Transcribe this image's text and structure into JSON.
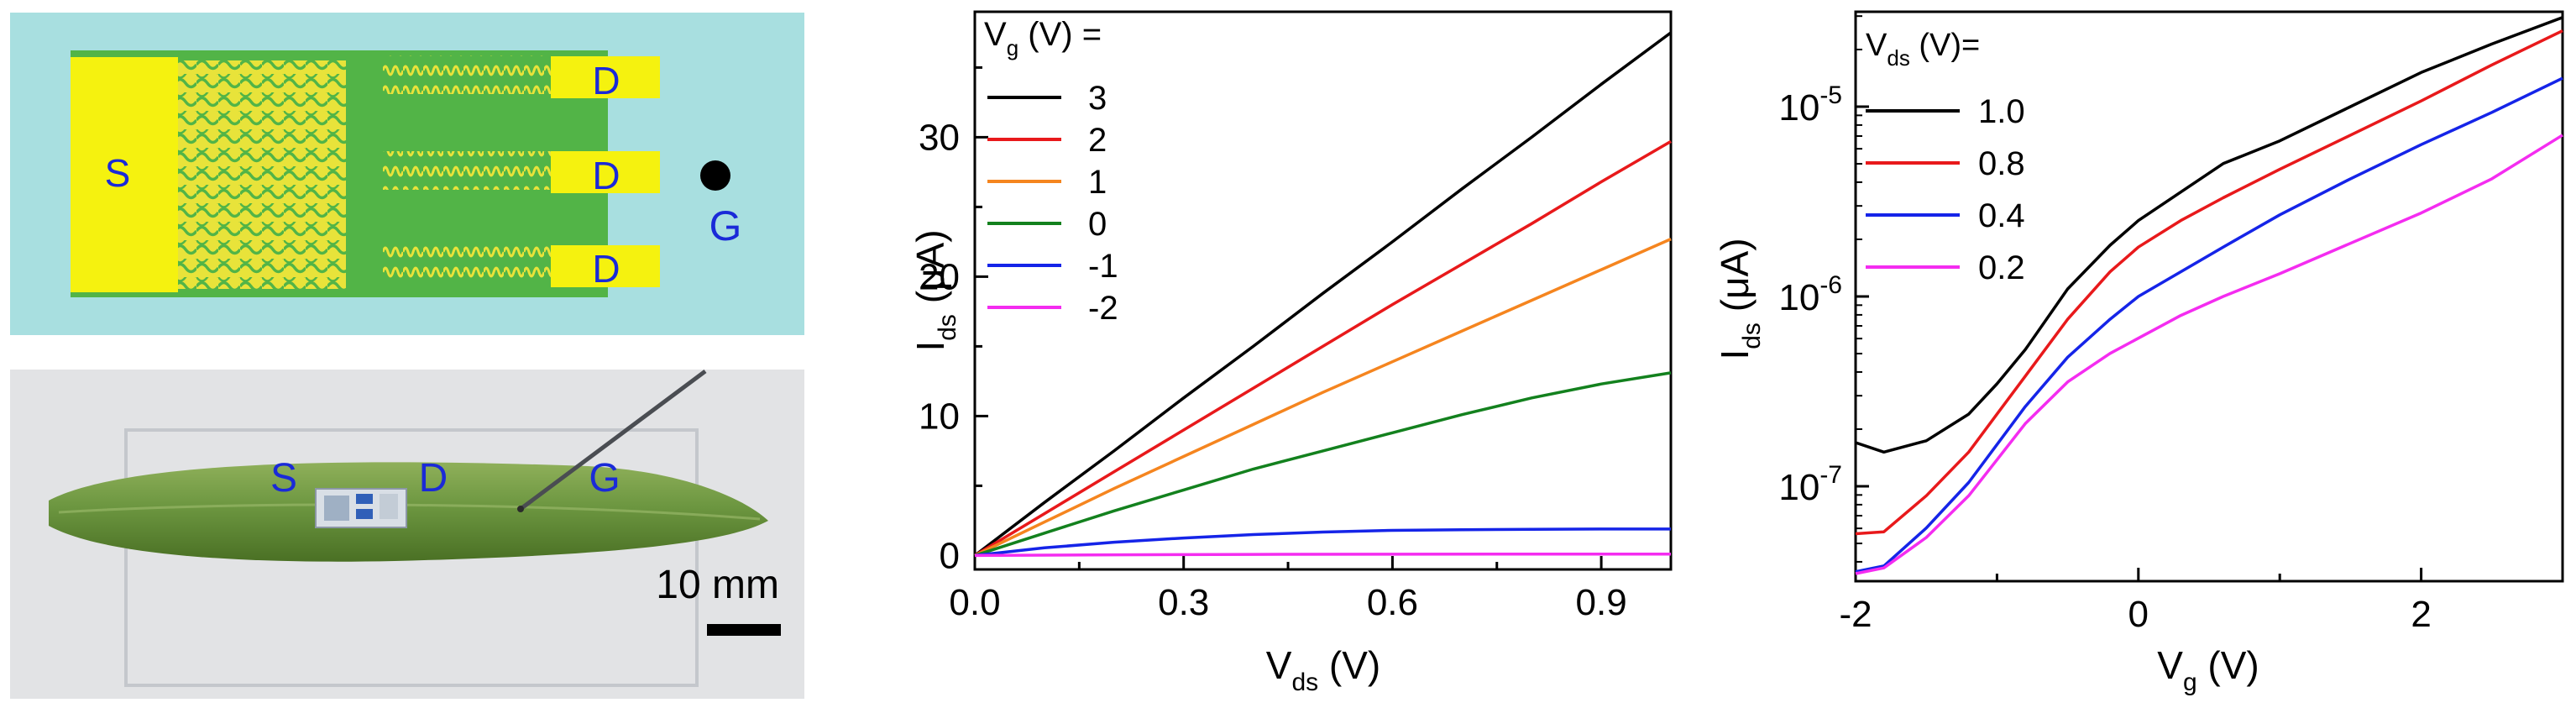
{
  "schematic": {
    "source_label": "S",
    "drain_labels": [
      "D",
      "D",
      "D"
    ],
    "gate_label": "G"
  },
  "photo": {
    "labels": [
      "S",
      "D",
      "G"
    ],
    "scale_bar_label": "10 mm"
  },
  "chart_data": [
    {
      "type": "line",
      "xlabel": "V_ds (V)",
      "ylabel": "I_ds (μA)",
      "xlim": [
        0,
        1.0
      ],
      "ylim": [
        -1,
        39
      ],
      "x_ticks": [
        0.0,
        0.3,
        0.6,
        0.9
      ],
      "x_tick_labels": [
        "0.0",
        "0.3",
        "0.6",
        "0.9"
      ],
      "y_ticks": [
        0,
        10,
        20,
        30
      ],
      "y_tick_labels": [
        "0",
        "10",
        "20",
        "30"
      ],
      "legend_title": "V_g (V) =",
      "legend_position": "top-left",
      "series": [
        {
          "name": "3",
          "color": "#000000",
          "x": [
            0,
            0.1,
            0.2,
            0.3,
            0.4,
            0.5,
            0.6,
            0.7,
            0.8,
            0.9,
            1.0
          ],
          "y": [
            0,
            3.8,
            7.5,
            11.3,
            15.0,
            18.8,
            22.5,
            26.3,
            30.0,
            33.8,
            37.5
          ]
        },
        {
          "name": "2",
          "color": "#e8191b",
          "x": [
            0,
            0.1,
            0.2,
            0.3,
            0.4,
            0.5,
            0.6,
            0.7,
            0.8,
            0.9,
            1.0
          ],
          "y": [
            0,
            3.0,
            6.0,
            9.0,
            12.0,
            15.0,
            18.0,
            20.9,
            23.8,
            26.8,
            29.7
          ]
        },
        {
          "name": "1",
          "color": "#f5851f",
          "x": [
            0,
            0.1,
            0.2,
            0.3,
            0.4,
            0.5,
            0.6,
            0.7,
            0.8,
            0.9,
            1.0
          ],
          "y": [
            0,
            2.4,
            4.8,
            7.1,
            9.4,
            11.7,
            13.9,
            16.1,
            18.3,
            20.5,
            22.7
          ]
        },
        {
          "name": "0",
          "color": "#13811e",
          "x": [
            0,
            0.1,
            0.2,
            0.3,
            0.4,
            0.5,
            0.6,
            0.7,
            0.8,
            0.9,
            1.0
          ],
          "y": [
            0,
            1.6,
            3.2,
            4.7,
            6.2,
            7.5,
            8.8,
            10.1,
            11.3,
            12.3,
            13.1
          ]
        },
        {
          "name": "-1",
          "color": "#1524e8",
          "x": [
            0,
            0.1,
            0.2,
            0.3,
            0.4,
            0.5,
            0.6,
            0.7,
            0.8,
            0.9,
            1.0
          ],
          "y": [
            0,
            0.55,
            0.95,
            1.25,
            1.5,
            1.68,
            1.8,
            1.85,
            1.88,
            1.9,
            1.9
          ]
        },
        {
          "name": "-2",
          "color": "#f42cf0",
          "x": [
            0,
            0.2,
            0.4,
            0.6,
            0.8,
            1.0
          ],
          "y": [
            0,
            0.05,
            0.08,
            0.09,
            0.1,
            0.1
          ]
        }
      ]
    },
    {
      "type": "line",
      "xlabel": "V_g (V)",
      "ylabel": "I_ds (μA)",
      "yscale": "log",
      "xlim": [
        -2,
        3
      ],
      "ylim_log10": [
        -7.5,
        -4.5
      ],
      "x_ticks": [
        -2,
        0,
        2
      ],
      "x_tick_labels": [
        "-2",
        "0",
        "2"
      ],
      "y_ticks_log10": [
        -7,
        -6,
        -5
      ],
      "y_tick_labels": [
        "10-7",
        "10-6",
        "10-5"
      ],
      "legend_title": "V_ds (V)=",
      "legend_position": "top-left",
      "series": [
        {
          "name": "1.0",
          "color": "#000000",
          "x": [
            -2,
            -1.8,
            -1.5,
            -1.2,
            -1.0,
            -0.8,
            -0.5,
            -0.2,
            0,
            0.3,
            0.6,
            1.0,
            1.5,
            2.0,
            2.5,
            3.0
          ],
          "log10_y": [
            -6.77,
            -6.82,
            -6.76,
            -6.62,
            -6.46,
            -6.28,
            -5.96,
            -5.73,
            -5.6,
            -5.45,
            -5.3,
            -5.18,
            -5.0,
            -4.82,
            -4.67,
            -4.53
          ]
        },
        {
          "name": "0.8",
          "color": "#e8191b",
          "x": [
            -2,
            -1.8,
            -1.5,
            -1.2,
            -1.0,
            -0.8,
            -0.5,
            -0.2,
            0,
            0.3,
            0.6,
            1.0,
            1.5,
            2.0,
            2.5,
            3.0
          ],
          "log10_y": [
            -7.25,
            -7.24,
            -7.05,
            -6.82,
            -6.62,
            -6.42,
            -6.12,
            -5.87,
            -5.74,
            -5.6,
            -5.48,
            -5.33,
            -5.15,
            -4.97,
            -4.78,
            -4.6
          ]
        },
        {
          "name": "0.4",
          "color": "#1524e8",
          "x": [
            -2,
            -1.8,
            -1.5,
            -1.2,
            -1.0,
            -0.8,
            -0.5,
            -0.2,
            0,
            0.3,
            0.6,
            1.0,
            1.5,
            2.0,
            2.5,
            3.0
          ],
          "log10_y": [
            -7.45,
            -7.42,
            -7.22,
            -6.98,
            -6.78,
            -6.58,
            -6.32,
            -6.12,
            -6.0,
            -5.87,
            -5.74,
            -5.57,
            -5.38,
            -5.2,
            -5.03,
            -4.85
          ]
        },
        {
          "name": "0.2",
          "color": "#f42cf0",
          "x": [
            -2,
            -1.8,
            -1.5,
            -1.2,
            -1.0,
            -0.8,
            -0.5,
            -0.2,
            0,
            0.3,
            0.6,
            1.0,
            1.5,
            2.0,
            2.5,
            3.0
          ],
          "log10_y": [
            -7.46,
            -7.43,
            -7.27,
            -7.05,
            -6.86,
            -6.67,
            -6.45,
            -6.3,
            -6.22,
            -6.1,
            -6.0,
            -5.88,
            -5.72,
            -5.56,
            -5.38,
            -5.15
          ]
        }
      ]
    }
  ]
}
